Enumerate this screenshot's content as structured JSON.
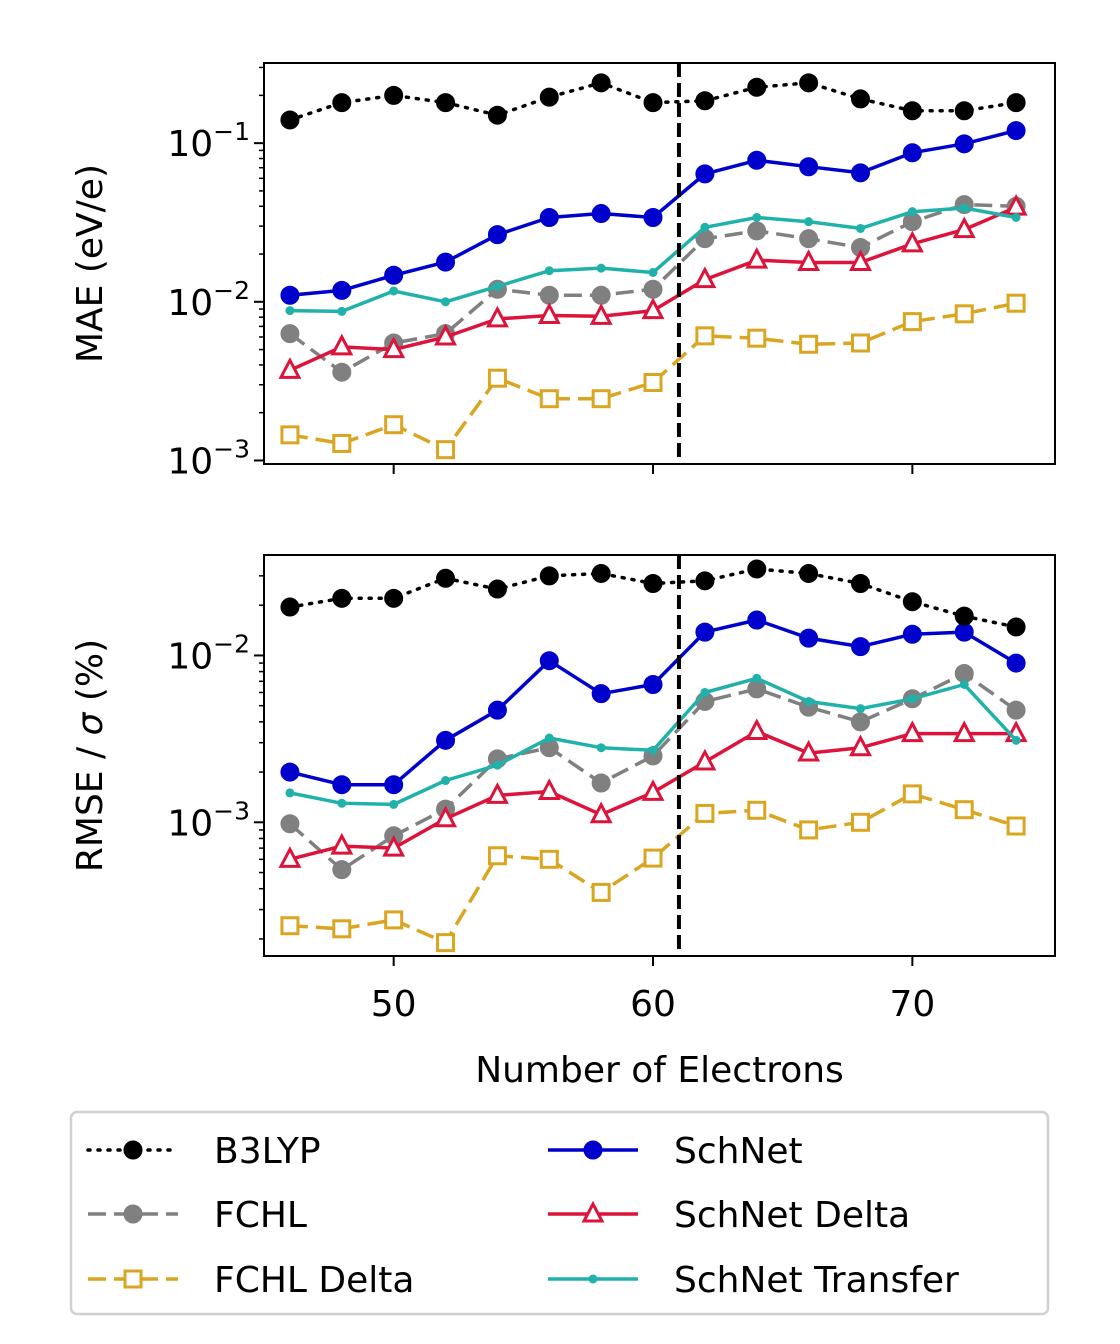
{
  "chart_data": [
    {
      "type": "line",
      "ylabel": "MAE (eV/e)",
      "yscale": "log",
      "ylim": [
        0.00095,
        0.32
      ],
      "xlim": [
        45,
        75.5
      ],
      "yticks": [
        0.001,
        0.01,
        0.1
      ],
      "yticklabels": [
        [
          "10",
          "−3"
        ],
        [
          "10",
          "−2"
        ],
        [
          "10",
          "−1"
        ]
      ],
      "vline_x": 61,
      "x": [
        46,
        48,
        50,
        52,
        54,
        56,
        58,
        60,
        62,
        64,
        66,
        68,
        70,
        72,
        74
      ],
      "series": [
        {
          "key": "b3lyp",
          "values": [
            0.14,
            0.18,
            0.2,
            0.18,
            0.15,
            0.195,
            0.24,
            0.18,
            0.185,
            0.225,
            0.24,
            0.19,
            0.16,
            0.16,
            0.18
          ]
        },
        {
          "key": "fchl",
          "values": [
            0.0063,
            0.0036,
            0.0055,
            0.0063,
            0.012,
            0.011,
            0.011,
            0.012,
            0.025,
            0.028,
            0.025,
            0.022,
            0.032,
            0.041,
            0.04
          ]
        },
        {
          "key": "fchl_delta",
          "values": [
            0.00145,
            0.00128,
            0.00168,
            0.00117,
            0.0033,
            0.00245,
            0.00245,
            0.0031,
            0.0061,
            0.0059,
            0.0054,
            0.0055,
            0.0075,
            0.0084,
            0.0098
          ]
        },
        {
          "key": "schnet",
          "values": [
            0.011,
            0.0118,
            0.0147,
            0.0178,
            0.0265,
            0.034,
            0.036,
            0.034,
            0.064,
            0.078,
            0.071,
            0.065,
            0.087,
            0.099,
            0.12
          ]
        },
        {
          "key": "schnet_delta",
          "values": [
            0.0037,
            0.0052,
            0.005,
            0.006,
            0.0078,
            0.0082,
            0.0081,
            0.0088,
            0.0138,
            0.0183,
            0.0177,
            0.0177,
            0.0232,
            0.0285,
            0.0395
          ]
        },
        {
          "key": "schnet_transfer",
          "values": [
            0.0088,
            0.0087,
            0.0117,
            0.01,
            0.0125,
            0.0157,
            0.0163,
            0.0153,
            0.0295,
            0.034,
            0.032,
            0.029,
            0.037,
            0.039,
            0.034
          ]
        }
      ]
    },
    {
      "type": "line",
      "ylabel": "RMSE / σ (%)",
      "xlabel": "Number of Electrons",
      "yscale": "log",
      "ylim": [
        0.000158,
        0.04
      ],
      "xlim": [
        45,
        75.5
      ],
      "xticks": [
        50,
        60,
        70
      ],
      "yticks": [
        0.001,
        0.01
      ],
      "yticklabels": [
        [
          "10",
          "−3"
        ],
        [
          "10",
          "−2"
        ]
      ],
      "vline_x": 61,
      "x": [
        46,
        48,
        50,
        52,
        54,
        56,
        58,
        60,
        62,
        64,
        66,
        68,
        70,
        72,
        74
      ],
      "series": [
        {
          "key": "b3lyp",
          "values": [
            0.0195,
            0.022,
            0.022,
            0.029,
            0.025,
            0.03,
            0.031,
            0.027,
            0.028,
            0.033,
            0.031,
            0.027,
            0.021,
            0.0172,
            0.0148
          ]
        },
        {
          "key": "fchl",
          "values": [
            0.00098,
            0.00052,
            0.00083,
            0.0012,
            0.0024,
            0.0028,
            0.00172,
            0.0025,
            0.0053,
            0.0063,
            0.0049,
            0.004,
            0.0055,
            0.0078,
            0.0047
          ]
        },
        {
          "key": "fchl_delta",
          "values": [
            0.00024,
            0.00023,
            0.00026,
            0.00019,
            0.00063,
            0.0006,
            0.00038,
            0.00061,
            0.00113,
            0.00118,
            0.0009,
            0.001,
            0.00148,
            0.00119,
            0.00095
          ]
        },
        {
          "key": "schnet",
          "values": [
            0.002,
            0.00168,
            0.00168,
            0.0031,
            0.0047,
            0.0093,
            0.0059,
            0.0067,
            0.0138,
            0.0163,
            0.0127,
            0.0113,
            0.0134,
            0.0138,
            0.009
          ]
        },
        {
          "key": "schnet_delta",
          "values": [
            0.0006,
            0.00072,
            0.0007,
            0.00105,
            0.00145,
            0.00153,
            0.00111,
            0.00151,
            0.0023,
            0.0035,
            0.0026,
            0.0028,
            0.0034,
            0.0034,
            0.0034
          ]
        },
        {
          "key": "schnet_transfer",
          "values": [
            0.0015,
            0.0013,
            0.00128,
            0.00178,
            0.0022,
            0.0032,
            0.0028,
            0.0027,
            0.006,
            0.0073,
            0.0053,
            0.0048,
            0.0055,
            0.0067,
            0.0031
          ]
        }
      ]
    }
  ],
  "series_styles": {
    "b3lyp": {
      "color": "#000000",
      "dash": "2 8",
      "marker": "circle"
    },
    "fchl": {
      "color": "#808080",
      "dash": "18 8",
      "marker": "circle"
    },
    "fchl_delta": {
      "color": "#DAA520",
      "dash": "18 8",
      "marker": "square"
    },
    "schnet": {
      "color": "#0000CD",
      "dash": "",
      "marker": "circle"
    },
    "schnet_delta": {
      "color": "#DC143C",
      "dash": "",
      "marker": "triangle"
    },
    "schnet_transfer": {
      "color": "#20B2AA",
      "dash": "",
      "marker": "small-circle"
    }
  },
  "series_order": [
    "fchl_delta",
    "fchl",
    "schnet_delta",
    "schnet_transfer",
    "schnet",
    "b3lyp"
  ],
  "legend": {
    "placement": "bottom",
    "entries": [
      {
        "key": "b3lyp",
        "label": "B3LYP"
      },
      {
        "key": "fchl",
        "label": "FCHL"
      },
      {
        "key": "fchl_delta",
        "label": "FCHL Delta"
      },
      {
        "key": "schnet",
        "label": "SchNet"
      },
      {
        "key": "schnet_delta",
        "label": "SchNet Delta"
      },
      {
        "key": "schnet_transfer",
        "label": "SchNet Transfer"
      }
    ]
  }
}
